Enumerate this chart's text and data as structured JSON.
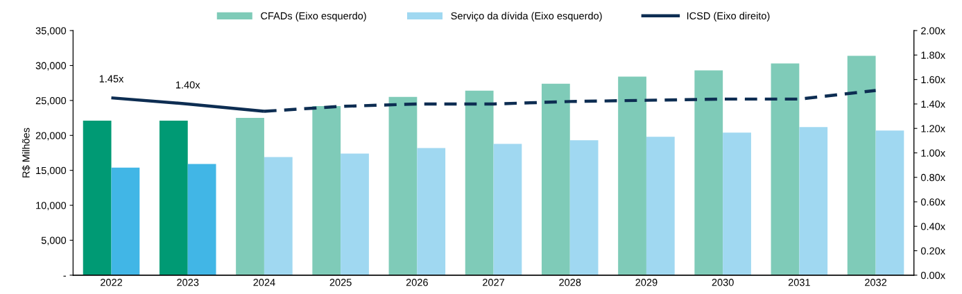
{
  "chart_data": {
    "type": "bar",
    "ylabel": "R$ Milhões",
    "categories": [
      "2022",
      "2023",
      "2024",
      "2025",
      "2026",
      "2027",
      "2028",
      "2029",
      "2030",
      "2031",
      "2032"
    ],
    "series": [
      {
        "name": "CFADs (Eixo esquerdo)",
        "color": "#7fcbb8",
        "colors": [
          "#009a74",
          "#009a74",
          "#7fcbb8",
          "#7fcbb8",
          "#7fcbb8",
          "#7fcbb8",
          "#7fcbb8",
          "#7fcbb8",
          "#7fcbb8",
          "#7fcbb8",
          "#7fcbb8"
        ],
        "values": [
          22100,
          22100,
          22500,
          24200,
          25500,
          26400,
          27400,
          28400,
          29300,
          30300,
          31400
        ]
      },
      {
        "name": "Serviço da dívida (Eixo esquerdo)",
        "color": "#a0d8f1",
        "colors": [
          "#41b6e6",
          "#41b6e6",
          "#a0d8f1",
          "#a0d8f1",
          "#a0d8f1",
          "#a0d8f1",
          "#a0d8f1",
          "#a0d8f1",
          "#a0d8f1",
          "#a0d8f1",
          "#a0d8f1"
        ],
        "values": [
          15400,
          15900,
          16900,
          17400,
          18200,
          18800,
          19300,
          19800,
          20400,
          21200,
          20700
        ]
      },
      {
        "name": "ICSD (Eixo direito)",
        "type": "line",
        "axis": "y2",
        "color": "#0d2d52",
        "line_style": "solid",
        "values": [
          1.45,
          1.4,
          1.34,
          null,
          null,
          null,
          null,
          null,
          null,
          null,
          null
        ],
        "value_labels": [
          "1.45x",
          "1.40x",
          null,
          null,
          null,
          null,
          null,
          null,
          null,
          null,
          null
        ]
      },
      {
        "type": "line",
        "axis": "y2",
        "color": "#0d2d52",
        "line_style": "dashed",
        "values": [
          null,
          null,
          1.34,
          1.38,
          1.4,
          1.4,
          1.42,
          1.43,
          1.44,
          1.44,
          1.51
        ]
      }
    ],
    "ylim": [
      0,
      35000
    ],
    "yticks": [
      {
        "value": 0,
        "label": "-"
      },
      {
        "value": 5000,
        "label": "5,000"
      },
      {
        "value": 10000,
        "label": "10,000"
      },
      {
        "value": 15000,
        "label": "15,000"
      },
      {
        "value": 20000,
        "label": "20,000"
      },
      {
        "value": 25000,
        "label": "25,000"
      },
      {
        "value": 30000,
        "label": "30,000"
      },
      {
        "value": 35000,
        "label": "35,000"
      }
    ],
    "y2lim": [
      0,
      2.0
    ],
    "y2ticks": [
      {
        "value": 0,
        "label": "0.00x"
      },
      {
        "value": 0.2,
        "label": "0.20x"
      },
      {
        "value": 0.4,
        "label": "0.40x"
      },
      {
        "value": 0.6,
        "label": "0.60x"
      },
      {
        "value": 0.8,
        "label": "0.80x"
      },
      {
        "value": 1.0,
        "label": "1.00x"
      },
      {
        "value": 1.2,
        "label": "1.20x"
      },
      {
        "value": 1.4,
        "label": "1.40x"
      },
      {
        "value": 1.6,
        "label": "1.60x"
      },
      {
        "value": 1.8,
        "label": "1.80x"
      },
      {
        "value": 2.0,
        "label": "2.00x"
      }
    ],
    "grid": false,
    "legend": "top",
    "marker": "none"
  }
}
